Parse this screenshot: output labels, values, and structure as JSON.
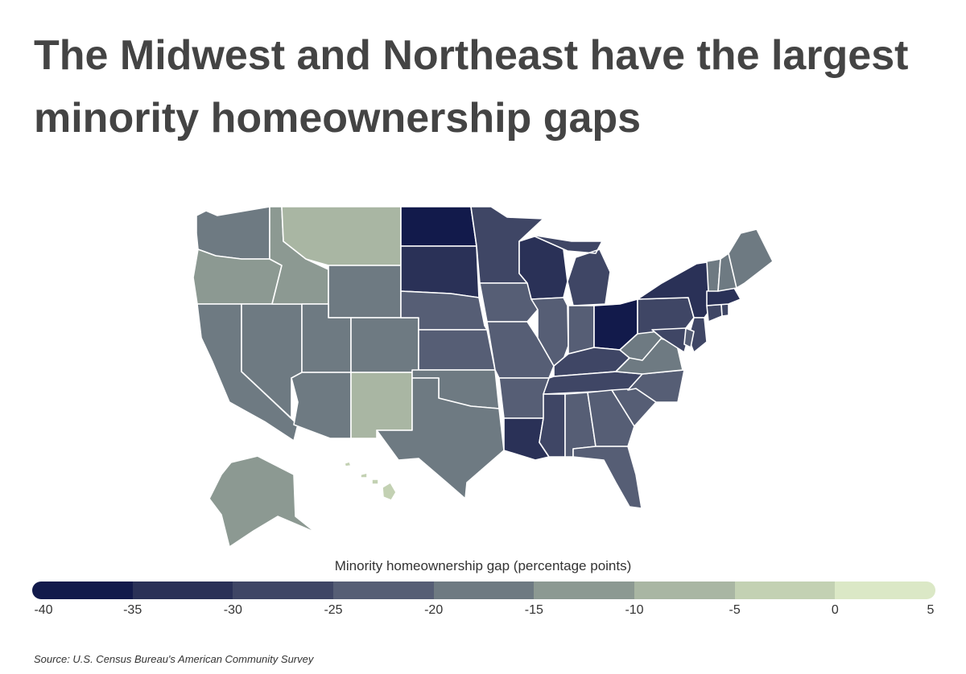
{
  "title": "The Midwest and Northeast have the largest minority homeownership gaps",
  "source": "Source: U.S. Census Bureau's American Community Survey",
  "legend": {
    "title": "Minority homeownership gap (percentage points)",
    "min": -40,
    "max": 5,
    "ticks": [
      "-40",
      "-35",
      "-30",
      "-25",
      "-20",
      "-15",
      "-10",
      "-5",
      "0",
      "5"
    ],
    "colors": [
      "#121a4b",
      "#2a3157",
      "#3f4665",
      "#565e75",
      "#6e7a82",
      "#8c9992",
      "#a9b6a3",
      "#c3d1b3",
      "#dbe8c6"
    ]
  },
  "map_data": {
    "type": "choropleth",
    "value_unit": "percentage points",
    "states": [
      {
        "id": "WA",
        "bin": 4
      },
      {
        "id": "OR",
        "bin": 5
      },
      {
        "id": "CA",
        "bin": 4
      },
      {
        "id": "NV",
        "bin": 4
      },
      {
        "id": "ID",
        "bin": 5
      },
      {
        "id": "MT",
        "bin": 6
      },
      {
        "id": "WY",
        "bin": 4
      },
      {
        "id": "UT",
        "bin": 4
      },
      {
        "id": "AZ",
        "bin": 4
      },
      {
        "id": "CO",
        "bin": 4
      },
      {
        "id": "NM",
        "bin": 6
      },
      {
        "id": "ND",
        "bin": 0
      },
      {
        "id": "SD",
        "bin": 1
      },
      {
        "id": "NE",
        "bin": 3
      },
      {
        "id": "KS",
        "bin": 3
      },
      {
        "id": "OK",
        "bin": 4
      },
      {
        "id": "TX",
        "bin": 4
      },
      {
        "id": "MN",
        "bin": 2
      },
      {
        "id": "IA",
        "bin": 3
      },
      {
        "id": "MO",
        "bin": 3
      },
      {
        "id": "AR",
        "bin": 3
      },
      {
        "id": "LA",
        "bin": 1
      },
      {
        "id": "WI",
        "bin": 1
      },
      {
        "id": "IL",
        "bin": 3
      },
      {
        "id": "MI",
        "bin": 2
      },
      {
        "id": "IN",
        "bin": 3
      },
      {
        "id": "OH",
        "bin": 0
      },
      {
        "id": "KY",
        "bin": 2
      },
      {
        "id": "TN",
        "bin": 2
      },
      {
        "id": "MS",
        "bin": 2
      },
      {
        "id": "AL",
        "bin": 3
      },
      {
        "id": "GA",
        "bin": 3
      },
      {
        "id": "FL",
        "bin": 3
      },
      {
        "id": "SC",
        "bin": 3
      },
      {
        "id": "NC",
        "bin": 3
      },
      {
        "id": "VA",
        "bin": 4
      },
      {
        "id": "WV",
        "bin": 4
      },
      {
        "id": "PA",
        "bin": 2
      },
      {
        "id": "NY",
        "bin": 1
      },
      {
        "id": "NJ",
        "bin": 2
      },
      {
        "id": "MD",
        "bin": 2
      },
      {
        "id": "DE",
        "bin": 3
      },
      {
        "id": "CT",
        "bin": 2
      },
      {
        "id": "RI",
        "bin": 2
      },
      {
        "id": "MA",
        "bin": 1
      },
      {
        "id": "VT",
        "bin": 4
      },
      {
        "id": "NH",
        "bin": 4
      },
      {
        "id": "ME",
        "bin": 4
      },
      {
        "id": "AK",
        "bin": 5
      },
      {
        "id": "HI",
        "bin": 7
      }
    ]
  }
}
